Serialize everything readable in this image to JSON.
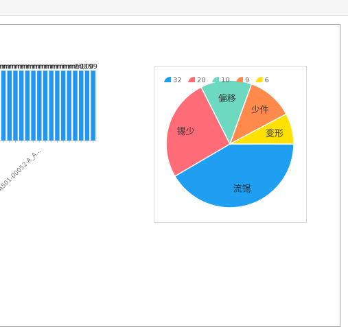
{
  "chart_data": [
    {
      "type": "bar",
      "title": "",
      "categories": [
        "",
        "",
        "",
        "",
        "",
        "",
        "",
        "",
        "",
        "",
        "",
        "",
        "",
        "",
        "",
        "",
        ""
      ],
      "values": [
        1,
        1,
        1,
        1,
        1,
        1,
        1,
        1,
        1,
        1,
        1,
        1,
        1,
        1,
        1,
        1,
        1
      ],
      "data_labels": [
        "mm",
        "mm",
        "mm",
        "mm",
        "mm",
        "mm",
        "mm",
        "mm",
        "mm",
        "mm",
        "mm",
        "mm",
        "mm",
        "mm",
        "100",
        "100",
        "99"
      ],
      "visible_tick_label": "A501-00052-A_A...",
      "color": "#2196f3"
    },
    {
      "type": "pie",
      "title": "",
      "legend_position": "top-left",
      "slices": [
        {
          "label": "流锡",
          "value": 32,
          "color": "#1e9ff2"
        },
        {
          "label": "锡少",
          "value": 20,
          "color": "#ff6b77"
        },
        {
          "label": "偏移",
          "value": 10,
          "color": "#6cd9c0"
        },
        {
          "label": "少件",
          "value": 9,
          "color": "#ff8a4c"
        },
        {
          "label": "变形",
          "value": 6,
          "color": "#ffe100"
        }
      ]
    }
  ]
}
